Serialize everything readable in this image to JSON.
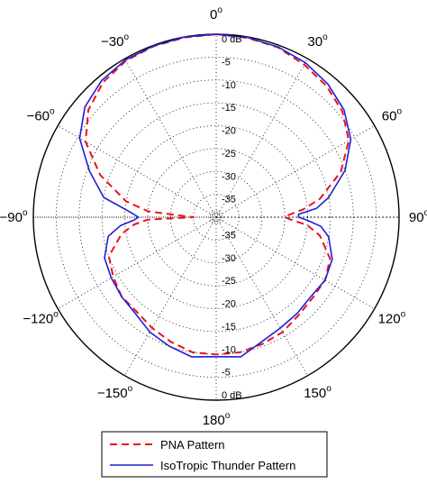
{
  "chart_data": {
    "type": "polar-line",
    "title": "",
    "angle_labels": [
      {
        "deg": 0,
        "text": "0"
      },
      {
        "deg": 30,
        "text": "30"
      },
      {
        "deg": 60,
        "text": "60"
      },
      {
        "deg": 90,
        "text": "90"
      },
      {
        "deg": 120,
        "text": "120"
      },
      {
        "deg": 150,
        "text": "150"
      },
      {
        "deg": 180,
        "text": "180"
      },
      {
        "deg": -150,
        "text": "−150"
      },
      {
        "deg": -120,
        "text": "−120"
      },
      {
        "deg": -90,
        "text": "−90"
      },
      {
        "deg": -60,
        "text": "−60"
      },
      {
        "deg": -30,
        "text": "−30"
      }
    ],
    "angle_unit_symbol": "o",
    "ring_labels_top": [
      "0 dB",
      "-5",
      "-10",
      "-15",
      "-20",
      "-25",
      "-30",
      "-35"
    ],
    "ring_labels_bottom": [
      "-35",
      "-30",
      "-25",
      "-20",
      "-15",
      "-10",
      "-5",
      "0 dB"
    ],
    "r_axis": {
      "unit": "dB",
      "min": -40,
      "max": 0,
      "step": 5
    },
    "theta_axis": {
      "zero": "top",
      "direction": "clockwise",
      "step_deg": 30
    },
    "grid": true,
    "legend_placement": "bottom",
    "series": [
      {
        "name": "PNA Pattern",
        "color": "#e8141b",
        "style": "dashed",
        "theta_deg": [
          0,
          10,
          20,
          30,
          40,
          50,
          60,
          70,
          80,
          85,
          88,
          90,
          92,
          95,
          100,
          110,
          120,
          130,
          140,
          150,
          160,
          170,
          180,
          -170,
          -160,
          -150,
          -140,
          -130,
          -120,
          -110,
          -100,
          -95,
          -92,
          -90,
          -88,
          -85,
          -80,
          -70,
          -60,
          -50,
          -40,
          -30,
          -20,
          -10
        ],
        "r_db": [
          0,
          -0.2,
          -0.5,
          -1.5,
          -2.5,
          -4.0,
          -6.5,
          -11.0,
          -17.0,
          -21.0,
          -24.0,
          -25.0,
          -23.5,
          -20.0,
          -17.0,
          -13.5,
          -12.5,
          -12.5,
          -12.0,
          -11.0,
          -10.5,
          -10.0,
          -10.0,
          -10.0,
          -11.0,
          -12.0,
          -13.0,
          -13.0,
          -14.0,
          -15.0,
          -19.0,
          -22.0,
          -25.0,
          -35.0,
          -33.0,
          -25.0,
          -20.0,
          -13.0,
          -7.0,
          -3.5,
          -1.5,
          -0.5,
          -0.2,
          -0.1
        ]
      },
      {
        "name": "IsoTropic Thunder Pattern",
        "color": "#1f1fd6",
        "style": "solid",
        "theta_deg": [
          0,
          10,
          20,
          30,
          40,
          50,
          60,
          70,
          80,
          85,
          88,
          90,
          92,
          95,
          100,
          110,
          120,
          130,
          140,
          150,
          160,
          170,
          180,
          -170,
          -160,
          -150,
          -140,
          -130,
          -120,
          -110,
          -100,
          -95,
          -92,
          -90,
          -88,
          -85,
          -80,
          -70,
          -60,
          -50,
          -40,
          -30,
          -20,
          -10
        ],
        "r_db": [
          0,
          -0.1,
          -0.4,
          -1.0,
          -2.0,
          -3.5,
          -6.0,
          -10.0,
          -15.0,
          -18.0,
          -22.0,
          -22.0,
          -20.0,
          -17.0,
          -15.0,
          -13.0,
          -12.5,
          -13.0,
          -12.5,
          -12.0,
          -11.0,
          -9.0,
          -9.5,
          -9.0,
          -10.0,
          -11.0,
          -12.5,
          -13.0,
          -13.5,
          -14.0,
          -16.0,
          -19.0,
          -22.0,
          -23.0,
          -22.0,
          -20.0,
          -15.0,
          -10.5,
          -5.5,
          -2.5,
          -1.0,
          -0.3,
          -0.1,
          0
        ]
      }
    ]
  }
}
